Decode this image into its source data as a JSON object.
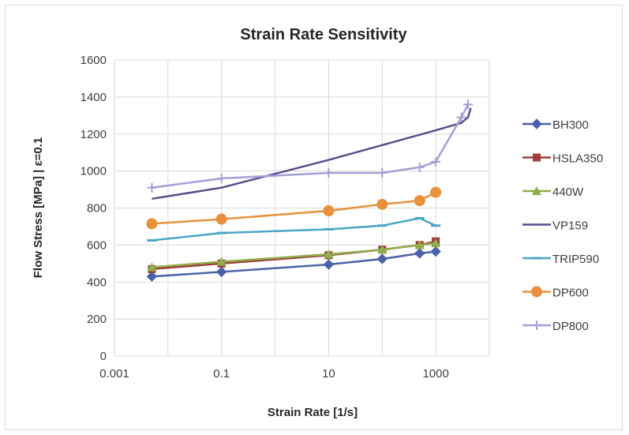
{
  "chart_data": {
    "type": "line",
    "title": "Strain Rate Sensitivity",
    "xlabel": "Strain Rate [1/s]",
    "ylabel": "Flow Stress [MPa] | ε=0.1",
    "xscale": "log",
    "xlim": [
      0.001,
      10000
    ],
    "ylim": [
      0,
      1600
    ],
    "xticks": [
      0.001,
      0.1,
      10,
      1000
    ],
    "xtick_labels": [
      "0.001",
      "0.1",
      "10",
      "1000"
    ],
    "yticks": [
      0,
      200,
      400,
      600,
      800,
      1000,
      1200,
      1400,
      1600
    ],
    "ytick_labels": [
      "0",
      "200",
      "400",
      "600",
      "800",
      "1000",
      "1200",
      "1400",
      "1600"
    ],
    "grid": true,
    "legend_position": "right",
    "series": [
      {
        "name": "BH300",
        "color": "#4a62a8",
        "marker": "diamond",
        "x": [
          0.005,
          0.1,
          10,
          100,
          500,
          1000
        ],
        "y": [
          430,
          455,
          495,
          525,
          555,
          565
        ]
      },
      {
        "name": "HSLA350",
        "color": "#a03c3a",
        "marker": "square",
        "x": [
          0.005,
          0.1,
          10,
          100,
          500,
          1000
        ],
        "y": [
          470,
          500,
          545,
          575,
          600,
          620
        ]
      },
      {
        "name": "440W",
        "color": "#8fae4a",
        "marker": "triangle",
        "x": [
          0.005,
          0.1,
          10,
          100,
          500,
          1000
        ],
        "y": [
          480,
          510,
          550,
          575,
          600,
          610
        ]
      },
      {
        "name": "VP159",
        "color": "#5c4b8e",
        "marker": "none",
        "x": [
          0.005,
          0.1,
          10,
          100,
          1000,
          3000,
          4000,
          4500
        ],
        "y": [
          850,
          910,
          1060,
          1140,
          1220,
          1260,
          1290,
          1340
        ]
      },
      {
        "name": "TRIP590",
        "color": "#4aa6c8",
        "marker": "dash",
        "x": [
          0.005,
          0.1,
          10,
          100,
          500,
          1000
        ],
        "y": [
          625,
          665,
          685,
          705,
          745,
          705
        ]
      },
      {
        "name": "DP600",
        "color": "#e8913a",
        "marker": "circle",
        "x": [
          0.005,
          0.1,
          10,
          100,
          500,
          1000
        ],
        "y": [
          715,
          740,
          785,
          820,
          840,
          885
        ]
      },
      {
        "name": "DP800",
        "color": "#a2a0d8",
        "marker": "plus",
        "x": [
          0.005,
          0.1,
          10,
          100,
          500,
          1000,
          3000,
          4000
        ],
        "y": [
          910,
          960,
          990,
          990,
          1020,
          1050,
          1290,
          1360
        ]
      }
    ]
  }
}
